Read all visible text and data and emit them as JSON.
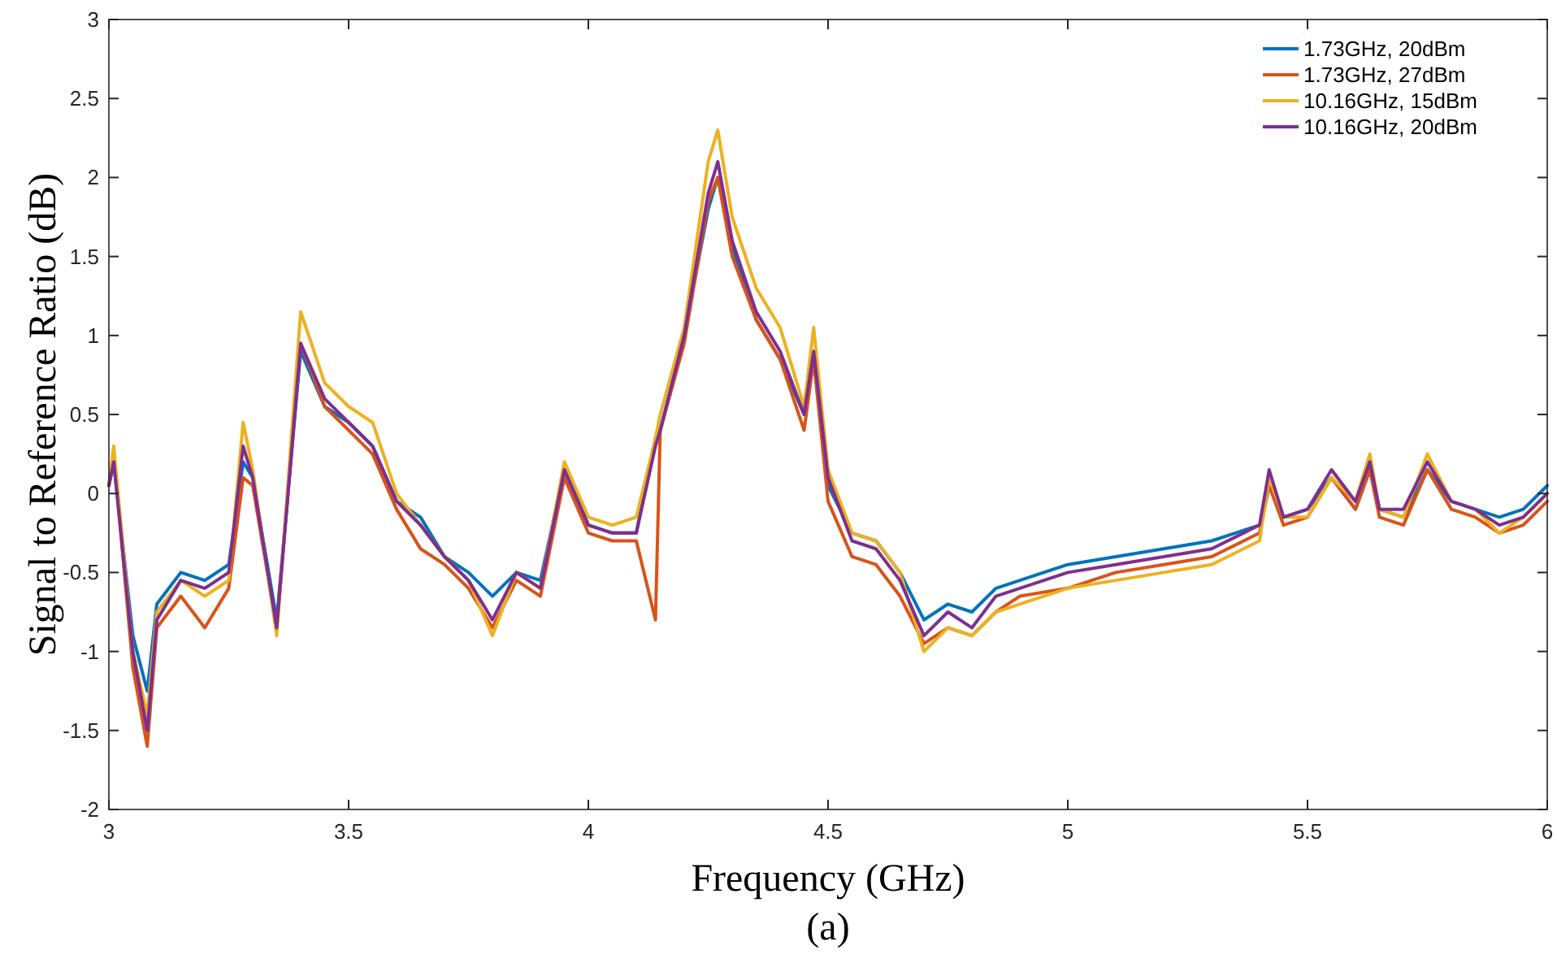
{
  "chart_data": {
    "type": "line",
    "xlabel": "Frequency (GHz)",
    "ylabel": "Signal to Reference Ratio (dB)",
    "annotations": [
      "(a)"
    ],
    "x": [
      3.0,
      3.01,
      3.05,
      3.08,
      3.1,
      3.15,
      3.2,
      3.25,
      3.28,
      3.3,
      3.35,
      3.4,
      3.45,
      3.5,
      3.55,
      3.6,
      3.65,
      3.7,
      3.75,
      3.8,
      3.85,
      3.9,
      3.95,
      4.0,
      4.05,
      4.1,
      4.14,
      4.15,
      4.2,
      4.25,
      4.27,
      4.3,
      4.35,
      4.4,
      4.45,
      4.47,
      4.5,
      4.55,
      4.6,
      4.65,
      4.7,
      4.75,
      4.8,
      4.85,
      4.9,
      5.0,
      5.1,
      5.2,
      5.3,
      5.4,
      5.42,
      5.45,
      5.5,
      5.55,
      5.6,
      5.63,
      5.65,
      5.7,
      5.75,
      5.8,
      5.85,
      5.9,
      5.95,
      6.0
    ],
    "series": [
      {
        "name": "1.73GHz, 20dBm",
        "color": "#0072bd",
        "values": [
          0.05,
          0.2,
          -0.9,
          -1.25,
          -0.7,
          -0.5,
          -0.55,
          -0.45,
          0.2,
          0.1,
          -0.8,
          0.9,
          0.55,
          0.45,
          0.3,
          -0.05,
          -0.15,
          -0.4,
          -0.5,
          -0.65,
          -0.5,
          -0.55,
          0.15,
          -0.2,
          -0.25,
          -0.25,
          0.35,
          0.4,
          1.0,
          1.8,
          2.0,
          1.55,
          1.1,
          0.85,
          0.5,
          0.85,
          0.05,
          -0.25,
          -0.3,
          -0.5,
          -0.8,
          -0.7,
          -0.75,
          -0.6,
          -0.55,
          -0.45,
          -0.4,
          -0.35,
          -0.3,
          -0.2,
          0.1,
          -0.15,
          -0.1,
          0.1,
          -0.1,
          0.15,
          -0.1,
          -0.15,
          0.15,
          -0.05,
          -0.1,
          -0.15,
          -0.1,
          0.05
        ]
      },
      {
        "name": "1.73GHz, 27dBm",
        "color": "#d95319",
        "values": [
          0.05,
          0.25,
          -1.1,
          -1.6,
          -0.85,
          -0.65,
          -0.85,
          -0.6,
          0.1,
          0.05,
          -0.85,
          0.95,
          0.55,
          0.4,
          0.25,
          -0.1,
          -0.35,
          -0.45,
          -0.6,
          -0.85,
          -0.55,
          -0.65,
          0.1,
          -0.25,
          -0.3,
          -0.3,
          -0.8,
          0.4,
          0.95,
          1.85,
          2.0,
          1.5,
          1.1,
          0.85,
          0.4,
          0.85,
          -0.05,
          -0.4,
          -0.45,
          -0.65,
          -0.95,
          -0.85,
          -0.9,
          -0.75,
          -0.65,
          -0.6,
          -0.5,
          -0.45,
          -0.4,
          -0.25,
          0.05,
          -0.2,
          -0.15,
          0.1,
          -0.1,
          0.15,
          -0.15,
          -0.2,
          0.15,
          -0.1,
          -0.15,
          -0.25,
          -0.2,
          -0.05
        ]
      },
      {
        "name": "10.16GHz, 15dBm",
        "color": "#edb120",
        "values": [
          0.05,
          0.3,
          -1.0,
          -1.4,
          -0.75,
          -0.55,
          -0.65,
          -0.55,
          0.45,
          0.15,
          -0.9,
          1.15,
          0.7,
          0.55,
          0.45,
          0.0,
          -0.2,
          -0.4,
          -0.55,
          -0.9,
          -0.5,
          -0.6,
          0.2,
          -0.15,
          -0.2,
          -0.15,
          0.35,
          0.5,
          1.05,
          2.1,
          2.3,
          1.75,
          1.3,
          1.05,
          0.55,
          1.05,
          0.15,
          -0.25,
          -0.3,
          -0.5,
          -1.0,
          -0.85,
          -0.9,
          -0.75,
          -0.7,
          -0.6,
          -0.55,
          -0.5,
          -0.45,
          -0.3,
          0.1,
          -0.15,
          -0.15,
          0.1,
          -0.05,
          0.25,
          -0.1,
          -0.15,
          0.25,
          -0.05,
          -0.1,
          -0.25,
          -0.15,
          0
        ]
      },
      {
        "name": "10.16GHz, 20dBm",
        "color": "#7e2f8e",
        "values": [
          0.05,
          0.2,
          -1.0,
          -1.5,
          -0.8,
          -0.55,
          -0.6,
          -0.5,
          0.3,
          0.1,
          -0.85,
          0.95,
          0.6,
          0.45,
          0.3,
          -0.05,
          -0.2,
          -0.4,
          -0.55,
          -0.8,
          -0.5,
          -0.6,
          0.15,
          -0.2,
          -0.25,
          -0.25,
          0.3,
          0.4,
          1.0,
          1.9,
          2.1,
          1.6,
          1.15,
          0.9,
          0.5,
          0.9,
          0.1,
          -0.3,
          -0.35,
          -0.55,
          -0.9,
          -0.75,
          -0.85,
          -0.65,
          -0.6,
          -0.5,
          -0.45,
          -0.4,
          -0.35,
          -0.2,
          0.15,
          -0.15,
          -0.1,
          0.15,
          -0.05,
          0.2,
          -0.1,
          -0.1,
          0.2,
          -0.05,
          -0.1,
          -0.2,
          -0.15,
          0
        ]
      }
    ],
    "xlim": [
      3,
      6
    ],
    "xticks": [
      3,
      3.5,
      4,
      4.5,
      5,
      5.5,
      6
    ],
    "ylim": [
      -2,
      3
    ],
    "yticks": [
      -2,
      -1.5,
      -1,
      -0.5,
      0,
      0.5,
      1,
      1.5,
      2,
      2.5,
      3
    ],
    "grid": false,
    "legend": "top right",
    "marker": "none",
    "line_style": "solid"
  }
}
